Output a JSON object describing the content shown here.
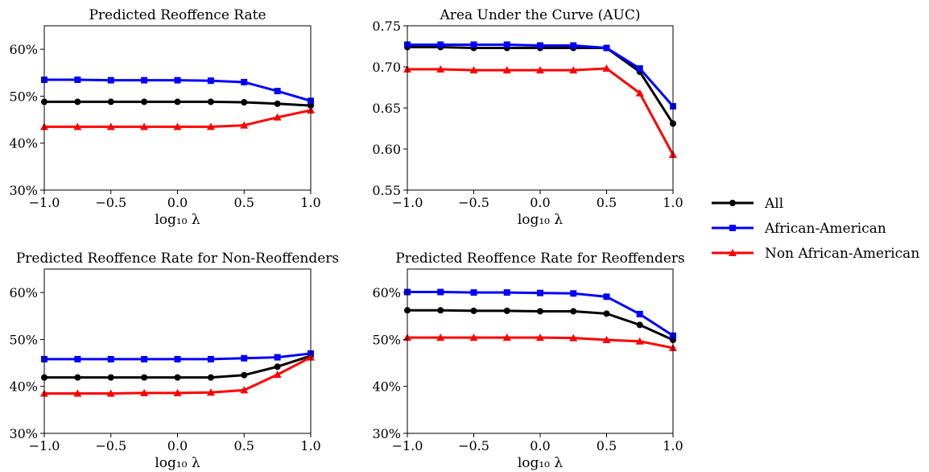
{
  "colors": {
    "All": "#000000",
    "African-American": "#0000ff",
    "Non African-American": "#ff0000"
  },
  "legend": {
    "placement": "right",
    "entries": [
      {
        "name": "All",
        "marker": "circle"
      },
      {
        "name": "African-American",
        "marker": "square"
      },
      {
        "name": "Non African-American",
        "marker": "triangle"
      }
    ]
  },
  "chart_data": [
    {
      "type": "line",
      "title": "Predicted Reoffence Rate",
      "xlabel": "log₁₀ λ",
      "ylabel": "",
      "x": [
        -1.0,
        -0.75,
        -0.5,
        -0.25,
        0.0,
        0.25,
        0.5,
        0.75,
        1.0
      ],
      "xlim": [
        -1.0,
        1.0
      ],
      "ylim": [
        30,
        65
      ],
      "xticks": [
        -1.0,
        -0.5,
        0.0,
        0.5,
        1.0
      ],
      "xtick_labels": [
        "−1.0",
        "−0.5",
        "0.0",
        "0.5",
        "1.0"
      ],
      "yticks": [
        30,
        40,
        50,
        60
      ],
      "ytick_labels": [
        "30%",
        "40%",
        "50%",
        "60%"
      ],
      "grid": false,
      "series": [
        {
          "name": "All",
          "values": [
            48.8,
            48.8,
            48.8,
            48.8,
            48.8,
            48.8,
            48.7,
            48.4,
            48.0
          ]
        },
        {
          "name": "African-American",
          "values": [
            53.5,
            53.5,
            53.4,
            53.4,
            53.4,
            53.3,
            53.0,
            51.1,
            49.0
          ]
        },
        {
          "name": "Non African-American",
          "values": [
            43.5,
            43.5,
            43.5,
            43.5,
            43.5,
            43.5,
            43.8,
            45.5,
            47.0
          ]
        }
      ]
    },
    {
      "type": "line",
      "title": "Area Under the Curve (AUC)",
      "xlabel": "log₁₀ λ",
      "ylabel": "",
      "x": [
        -1.0,
        -0.75,
        -0.5,
        -0.25,
        0.0,
        0.25,
        0.5,
        0.75,
        1.0
      ],
      "xlim": [
        -1.0,
        1.0
      ],
      "ylim": [
        0.55,
        0.75
      ],
      "xticks": [
        -1.0,
        -0.5,
        0.0,
        0.5,
        1.0
      ],
      "xtick_labels": [
        "−1.0",
        "−0.5",
        "0.0",
        "0.5",
        "1.0"
      ],
      "yticks": [
        0.55,
        0.6,
        0.65,
        0.7,
        0.75
      ],
      "ytick_labels": [
        "0.55",
        "0.60",
        "0.65",
        "0.70",
        "0.75"
      ],
      "grid": false,
      "series": [
        {
          "name": "All",
          "values": [
            0.724,
            0.724,
            0.723,
            0.723,
            0.723,
            0.723,
            0.723,
            0.694,
            0.631
          ]
        },
        {
          "name": "African-American",
          "values": [
            0.727,
            0.727,
            0.727,
            0.727,
            0.726,
            0.726,
            0.723,
            0.698,
            0.652
          ]
        },
        {
          "name": "Non African-American",
          "values": [
            0.697,
            0.697,
            0.696,
            0.696,
            0.696,
            0.696,
            0.698,
            0.668,
            0.593
          ]
        }
      ]
    },
    {
      "type": "line",
      "title": "Predicted Reoffence Rate for Non-Reoffenders",
      "xlabel": "log₁₀ λ",
      "ylabel": "",
      "x": [
        -1.0,
        -0.75,
        -0.5,
        -0.25,
        0.0,
        0.25,
        0.5,
        0.75,
        1.0
      ],
      "xlim": [
        -1.0,
        1.0
      ],
      "ylim": [
        30,
        65
      ],
      "xticks": [
        -1.0,
        -0.5,
        0.0,
        0.5,
        1.0
      ],
      "xtick_labels": [
        "−1.0",
        "−0.5",
        "0.0",
        "0.5",
        "1.0"
      ],
      "yticks": [
        30,
        40,
        50,
        60
      ],
      "ytick_labels": [
        "30%",
        "40%",
        "50%",
        "60%"
      ],
      "grid": false,
      "series": [
        {
          "name": "All",
          "values": [
            41.9,
            41.9,
            41.9,
            41.9,
            41.9,
            41.9,
            42.4,
            44.2,
            46.5
          ]
        },
        {
          "name": "African-American",
          "values": [
            45.8,
            45.8,
            45.8,
            45.8,
            45.8,
            45.8,
            46.0,
            46.2,
            47.0
          ]
        },
        {
          "name": "Non African-American",
          "values": [
            38.5,
            38.5,
            38.5,
            38.6,
            38.6,
            38.7,
            39.2,
            42.5,
            46.2
          ]
        }
      ]
    },
    {
      "type": "line",
      "title": "Predicted Reoffence Rate for Reoffenders",
      "xlabel": "log₁₀ λ",
      "ylabel": "",
      "x": [
        -1.0,
        -0.75,
        -0.5,
        -0.25,
        0.0,
        0.25,
        0.5,
        0.75,
        1.0
      ],
      "xlim": [
        -1.0,
        1.0
      ],
      "ylim": [
        30,
        65
      ],
      "xticks": [
        -1.0,
        -0.5,
        0.0,
        0.5,
        1.0
      ],
      "xtick_labels": [
        "−1.0",
        "−0.5",
        "0.0",
        "0.5",
        "1.0"
      ],
      "yticks": [
        30,
        40,
        50,
        60
      ],
      "ytick_labels": [
        "30%",
        "40%",
        "50%",
        "60%"
      ],
      "grid": false,
      "series": [
        {
          "name": "All",
          "values": [
            56.2,
            56.2,
            56.1,
            56.1,
            56.0,
            56.0,
            55.5,
            53.1,
            49.9
          ]
        },
        {
          "name": "African-American",
          "values": [
            60.1,
            60.1,
            60.0,
            60.0,
            59.9,
            59.8,
            59.1,
            55.4,
            50.8
          ]
        },
        {
          "name": "Non African-American",
          "values": [
            50.4,
            50.4,
            50.4,
            50.4,
            50.4,
            50.3,
            49.9,
            49.6,
            48.2
          ]
        }
      ]
    }
  ]
}
